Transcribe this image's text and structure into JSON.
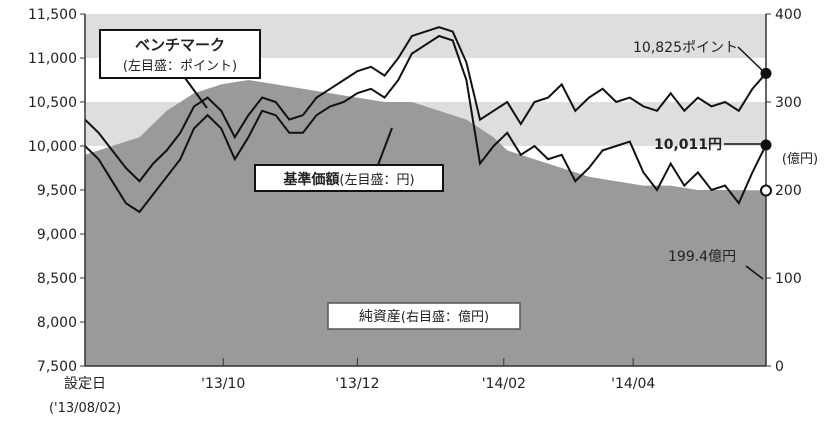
{
  "chart_data": {
    "type": "line",
    "left_axis": {
      "ylim": [
        7500,
        11500
      ],
      "ticks": [
        "7,500",
        "8,000",
        "8,500",
        "9,000",
        "9,500",
        "10,000",
        "10,500",
        "11,000",
        "11,500"
      ]
    },
    "right_axis": {
      "ylim": [
        0,
        400
      ],
      "ticks": [
        "0",
        "100",
        "200",
        "300",
        "400"
      ],
      "unit_label": "(億円)"
    },
    "x_tick_labels": [
      "設定日",
      "'13/10",
      "'13/12",
      "'14/02",
      "'14/04"
    ],
    "x_sub_label": "('13/08/02)",
    "x_tick_positions": [
      0,
      0.203,
      0.4,
      0.615,
      0.805
    ],
    "series": [
      {
        "name": "ベンチマーク",
        "name_sub": "(左目盛：ポイント)",
        "axis": "left",
        "x": [
          0,
          0.02,
          0.04,
          0.06,
          0.08,
          0.1,
          0.12,
          0.14,
          0.16,
          0.18,
          0.2,
          0.22,
          0.24,
          0.26,
          0.28,
          0.3,
          0.32,
          0.34,
          0.36,
          0.38,
          0.4,
          0.42,
          0.44,
          0.46,
          0.48,
          0.5,
          0.52,
          0.54,
          0.56,
          0.58,
          0.6,
          0.62,
          0.64,
          0.66,
          0.68,
          0.7,
          0.72,
          0.74,
          0.76,
          0.78,
          0.8,
          0.82,
          0.84,
          0.86,
          0.88,
          0.9,
          0.92,
          0.94,
          0.96,
          0.98,
          1.0
        ],
        "values": [
          10300,
          10150,
          9950,
          9750,
          9600,
          9800,
          9950,
          10150,
          10450,
          10550,
          10400,
          10100,
          10350,
          10550,
          10500,
          10300,
          10350,
          10550,
          10650,
          10750,
          10850,
          10900,
          10800,
          11000,
          11250,
          11300,
          11350,
          11300,
          10950,
          10300,
          10400,
          10500,
          10250,
          10500,
          10550,
          10700,
          10400,
          10550,
          10650,
          10500,
          10550,
          10450,
          10400,
          10600,
          10400,
          10550,
          10450,
          10500,
          10400,
          10650,
          10825
        ]
      },
      {
        "name": "基準価額",
        "name_sub": "(左目盛：円)",
        "axis": "left",
        "x": [
          0,
          0.02,
          0.04,
          0.06,
          0.08,
          0.1,
          0.12,
          0.14,
          0.16,
          0.18,
          0.2,
          0.22,
          0.24,
          0.26,
          0.28,
          0.3,
          0.32,
          0.34,
          0.36,
          0.38,
          0.4,
          0.42,
          0.44,
          0.46,
          0.48,
          0.5,
          0.52,
          0.54,
          0.56,
          0.58,
          0.6,
          0.62,
          0.64,
          0.66,
          0.68,
          0.7,
          0.72,
          0.74,
          0.76,
          0.78,
          0.8,
          0.82,
          0.84,
          0.86,
          0.88,
          0.9,
          0.92,
          0.94,
          0.96,
          0.98,
          1.0
        ],
        "values": [
          10000,
          9850,
          9600,
          9350,
          9250,
          9450,
          9650,
          9850,
          10200,
          10350,
          10200,
          9850,
          10100,
          10400,
          10350,
          10150,
          10150,
          10350,
          10450,
          10500,
          10600,
          10650,
          10550,
          10750,
          11050,
          11150,
          11250,
          11200,
          10750,
          9800,
          10000,
          10150,
          9900,
          10000,
          9850,
          9900,
          9600,
          9750,
          9950,
          10000,
          10050,
          9700,
          9500,
          9800,
          9550,
          9700,
          9500,
          9550,
          9350,
          9700,
          10011
        ]
      },
      {
        "name": "純資産",
        "name_sub": "(右目盛：億円)",
        "axis": "right",
        "type": "area",
        "x": [
          0,
          0.04,
          0.08,
          0.12,
          0.16,
          0.2,
          0.24,
          0.28,
          0.32,
          0.36,
          0.4,
          0.44,
          0.48,
          0.52,
          0.56,
          0.6,
          0.62,
          0.66,
          0.7,
          0.74,
          0.78,
          0.82,
          0.86,
          0.9,
          0.94,
          1.0
        ],
        "values": [
          240,
          250,
          260,
          290,
          310,
          320,
          325,
          320,
          315,
          310,
          305,
          300,
          300,
          290,
          280,
          260,
          245,
          235,
          225,
          215,
          210,
          205,
          205,
          200,
          200,
          199.4
        ]
      }
    ],
    "annotations": {
      "benchmark_end": "10,825ポイント",
      "nav_end": "10,011円",
      "assets_end": "199.4億円"
    }
  },
  "colors": {
    "band": "#dedede",
    "line": "#111111",
    "area": "#9a9a9a",
    "frame": "#333333"
  }
}
